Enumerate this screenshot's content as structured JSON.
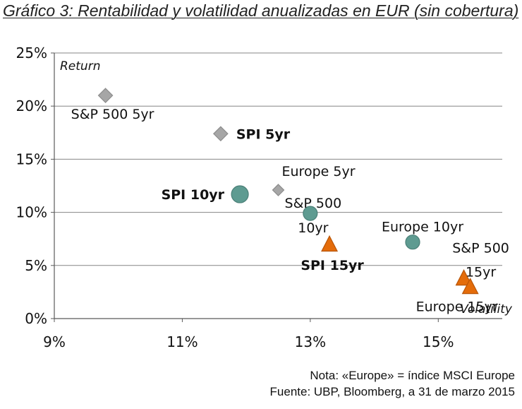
{
  "chart_data": {
    "type": "scatter",
    "title": "Gráfico 3: Rentabilidad y volatilidad anualizadas en EUR (sin cobertura)",
    "xlabel": "Volatility",
    "ylabel": "Return",
    "xlim": [
      9,
      16
    ],
    "ylim": [
      0,
      25
    ],
    "x_ticks": [
      "9%",
      "11%",
      "13%",
      "15%"
    ],
    "x_tick_values": [
      9,
      11,
      13,
      15
    ],
    "y_ticks": [
      "0%",
      "5%",
      "10%",
      "15%",
      "20%",
      "25%"
    ],
    "y_tick_values": [
      0,
      5,
      10,
      15,
      20,
      25
    ],
    "grid": "horizontal",
    "colors": {
      "gray": "#a6a6a6",
      "teal": "#5e9b91",
      "orange": "#e46c0a",
      "gridline": "#868686"
    },
    "points": [
      {
        "label": "S&P 500 5yr",
        "x": 9.8,
        "y": 21.0,
        "marker": "diamond",
        "color": "gray",
        "bold": false
      },
      {
        "label": "SPI 5yr",
        "x": 11.6,
        "y": 17.4,
        "marker": "diamond",
        "color": "gray",
        "bold": true
      },
      {
        "label": "Europe 5yr",
        "x": 12.5,
        "y": 12.1,
        "marker": "diamond-small",
        "color": "gray",
        "bold": false
      },
      {
        "label": "SPI 10yr",
        "x": 11.9,
        "y": 11.7,
        "marker": "circle-large",
        "color": "teal",
        "bold": true
      },
      {
        "label": "S&P 500 10yr",
        "x": 13.0,
        "y": 9.9,
        "marker": "circle",
        "color": "teal",
        "bold": false
      },
      {
        "label": "Europe 10yr",
        "x": 14.6,
        "y": 7.2,
        "marker": "circle",
        "color": "teal",
        "bold": false
      },
      {
        "label": "SPI 15yr",
        "x": 13.3,
        "y": 6.9,
        "marker": "triangle",
        "color": "orange",
        "bold": true
      },
      {
        "label": "S&P 500 15yr",
        "x": 15.4,
        "y": 3.7,
        "marker": "triangle",
        "color": "orange",
        "bold": false
      },
      {
        "label": "Europe 15yr",
        "x": 15.5,
        "y": 2.9,
        "marker": "triangle",
        "color": "orange",
        "bold": false
      }
    ]
  },
  "notes": {
    "line1": "Nota: «Europe» = índice MSCI Europe",
    "line2": "Fuente: UBP, Bloomberg, a 31 de marzo 2015"
  }
}
